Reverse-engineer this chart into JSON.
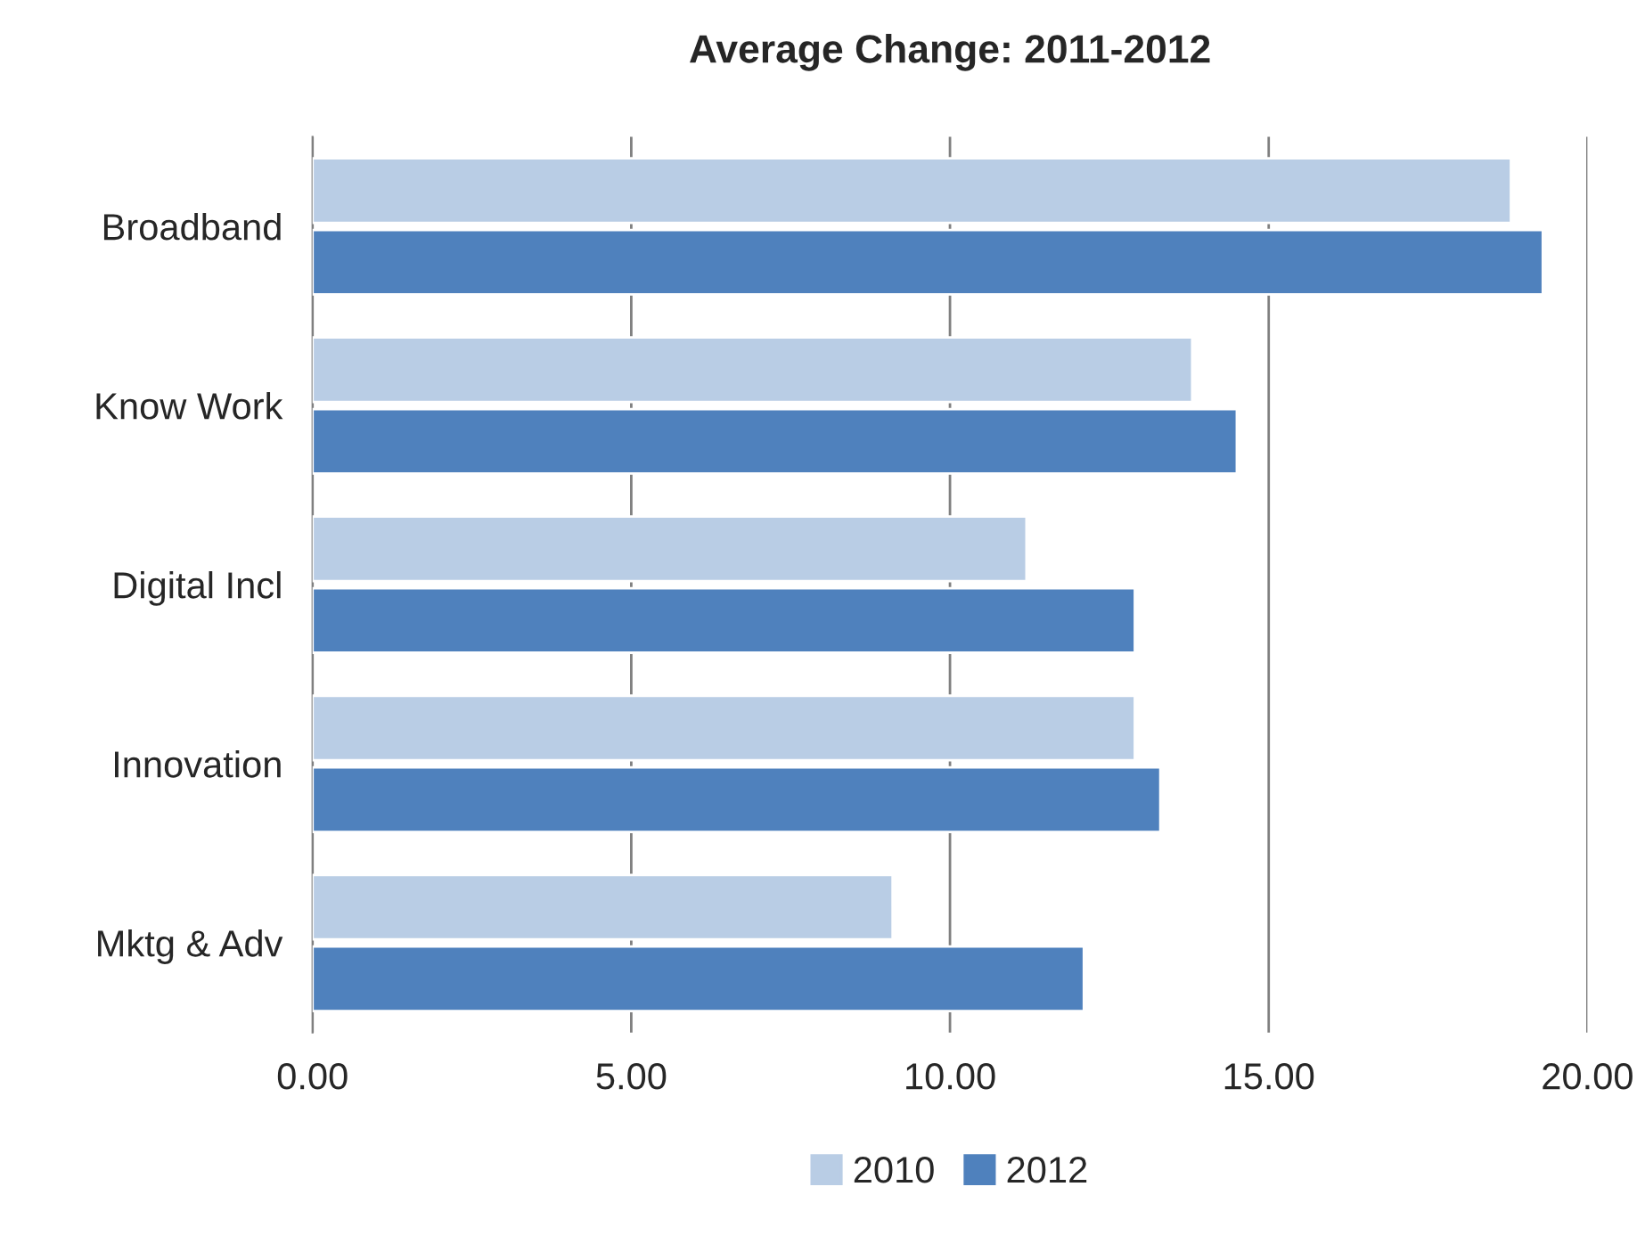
{
  "chart_data": {
    "type": "bar",
    "orientation": "horizontal",
    "title": "Average Change: 2011-2012",
    "categories": [
      "Broadband",
      "Know Work",
      "Digital Incl",
      "Innovation",
      "Mktg & Adv"
    ],
    "series": [
      {
        "name": "2010",
        "color": "#b9cde5",
        "values": [
          18.8,
          13.8,
          11.2,
          12.9,
          9.1
        ]
      },
      {
        "name": "2012",
        "color": "#4f81bd",
        "values": [
          19.3,
          14.5,
          12.9,
          13.3,
          12.1
        ]
      }
    ],
    "xlim": [
      0,
      20
    ],
    "xticks": [
      {
        "value": 0,
        "label": "0.00"
      },
      {
        "value": 5,
        "label": "5.00"
      },
      {
        "value": 10,
        "label": "10.00"
      },
      {
        "value": 15,
        "label": "15.00"
      },
      {
        "value": 20,
        "label": "20.00"
      }
    ],
    "grid": "x",
    "legend": "bottom"
  }
}
